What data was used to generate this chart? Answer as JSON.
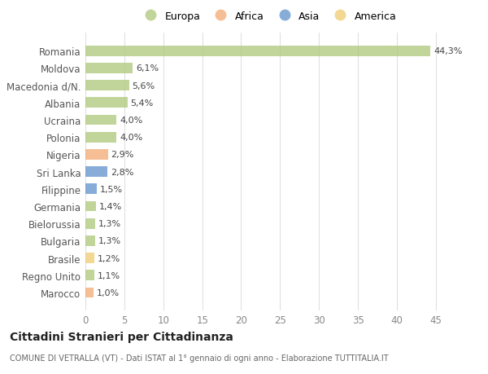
{
  "countries": [
    "Romania",
    "Moldova",
    "Macedonia d/N.",
    "Albania",
    "Ucraina",
    "Polonia",
    "Nigeria",
    "Sri Lanka",
    "Filippine",
    "Germania",
    "Bielorussia",
    "Bulgaria",
    "Brasile",
    "Regno Unito",
    "Marocco"
  ],
  "values": [
    44.3,
    6.1,
    5.6,
    5.4,
    4.0,
    4.0,
    2.9,
    2.8,
    1.5,
    1.4,
    1.3,
    1.3,
    1.2,
    1.1,
    1.0
  ],
  "labels": [
    "44,3%",
    "6,1%",
    "5,6%",
    "5,4%",
    "4,0%",
    "4,0%",
    "2,9%",
    "2,8%",
    "1,5%",
    "1,4%",
    "1,3%",
    "1,3%",
    "1,2%",
    "1,1%",
    "1,0%"
  ],
  "continents": [
    "Europa",
    "Europa",
    "Europa",
    "Europa",
    "Europa",
    "Europa",
    "Africa",
    "Asia",
    "Asia",
    "Europa",
    "Europa",
    "Europa",
    "America",
    "Europa",
    "Africa"
  ],
  "colors": {
    "Europa": "#adc878",
    "Africa": "#f4a870",
    "Asia": "#6090cc",
    "America": "#f0cc70"
  },
  "legend_order": [
    "Europa",
    "Africa",
    "Asia",
    "America"
  ],
  "legend_colors": [
    "#adc878",
    "#f4a870",
    "#6090cc",
    "#f0cc70"
  ],
  "title": "Cittadini Stranieri per Cittadinanza",
  "subtitle": "COMUNE DI VETRALLA (VT) - Dati ISTAT al 1° gennaio di ogni anno - Elaborazione TUTTITALIA.IT",
  "xlim": [
    0,
    47
  ],
  "xticks": [
    0,
    5,
    10,
    15,
    20,
    25,
    30,
    35,
    40,
    45
  ],
  "background_color": "#ffffff",
  "grid_color": "#e0e0e0",
  "bar_alpha": 0.75,
  "figsize": [
    6.0,
    4.6
  ],
  "dpi": 100
}
